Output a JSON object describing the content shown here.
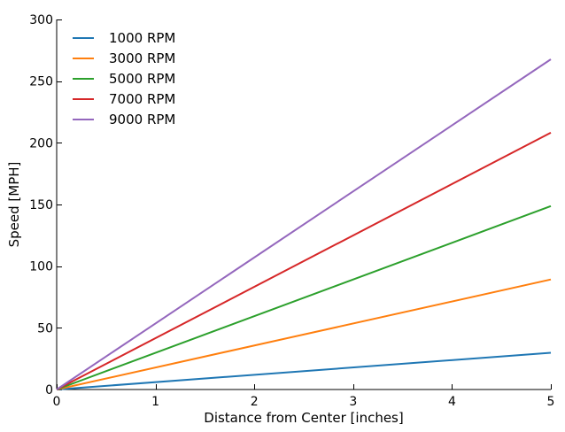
{
  "chart_data": {
    "type": "line",
    "title": "",
    "xlabel": "Distance from Center [inches]",
    "ylabel": "Speed [MPH]",
    "xlim": [
      0,
      5
    ],
    "ylim": [
      0,
      300
    ],
    "xticks": [
      0,
      1,
      2,
      3,
      4,
      5
    ],
    "yticks": [
      0,
      50,
      100,
      150,
      200,
      250,
      300
    ],
    "grid": false,
    "legend_position": "top-left",
    "x": [
      0,
      5
    ],
    "series": [
      {
        "name": "1000 RPM",
        "color": "#1f77b4",
        "values": [
          0,
          29.8
        ]
      },
      {
        "name": "3000 RPM",
        "color": "#ff7f0e",
        "values": [
          0,
          89.2
        ]
      },
      {
        "name": "5000 RPM",
        "color": "#2ca02c",
        "values": [
          0,
          148.7
        ]
      },
      {
        "name": "7000 RPM",
        "color": "#d62728",
        "values": [
          0,
          208.2
        ]
      },
      {
        "name": "9000 RPM",
        "color": "#9467bd",
        "values": [
          0,
          267.7
        ]
      }
    ]
  }
}
